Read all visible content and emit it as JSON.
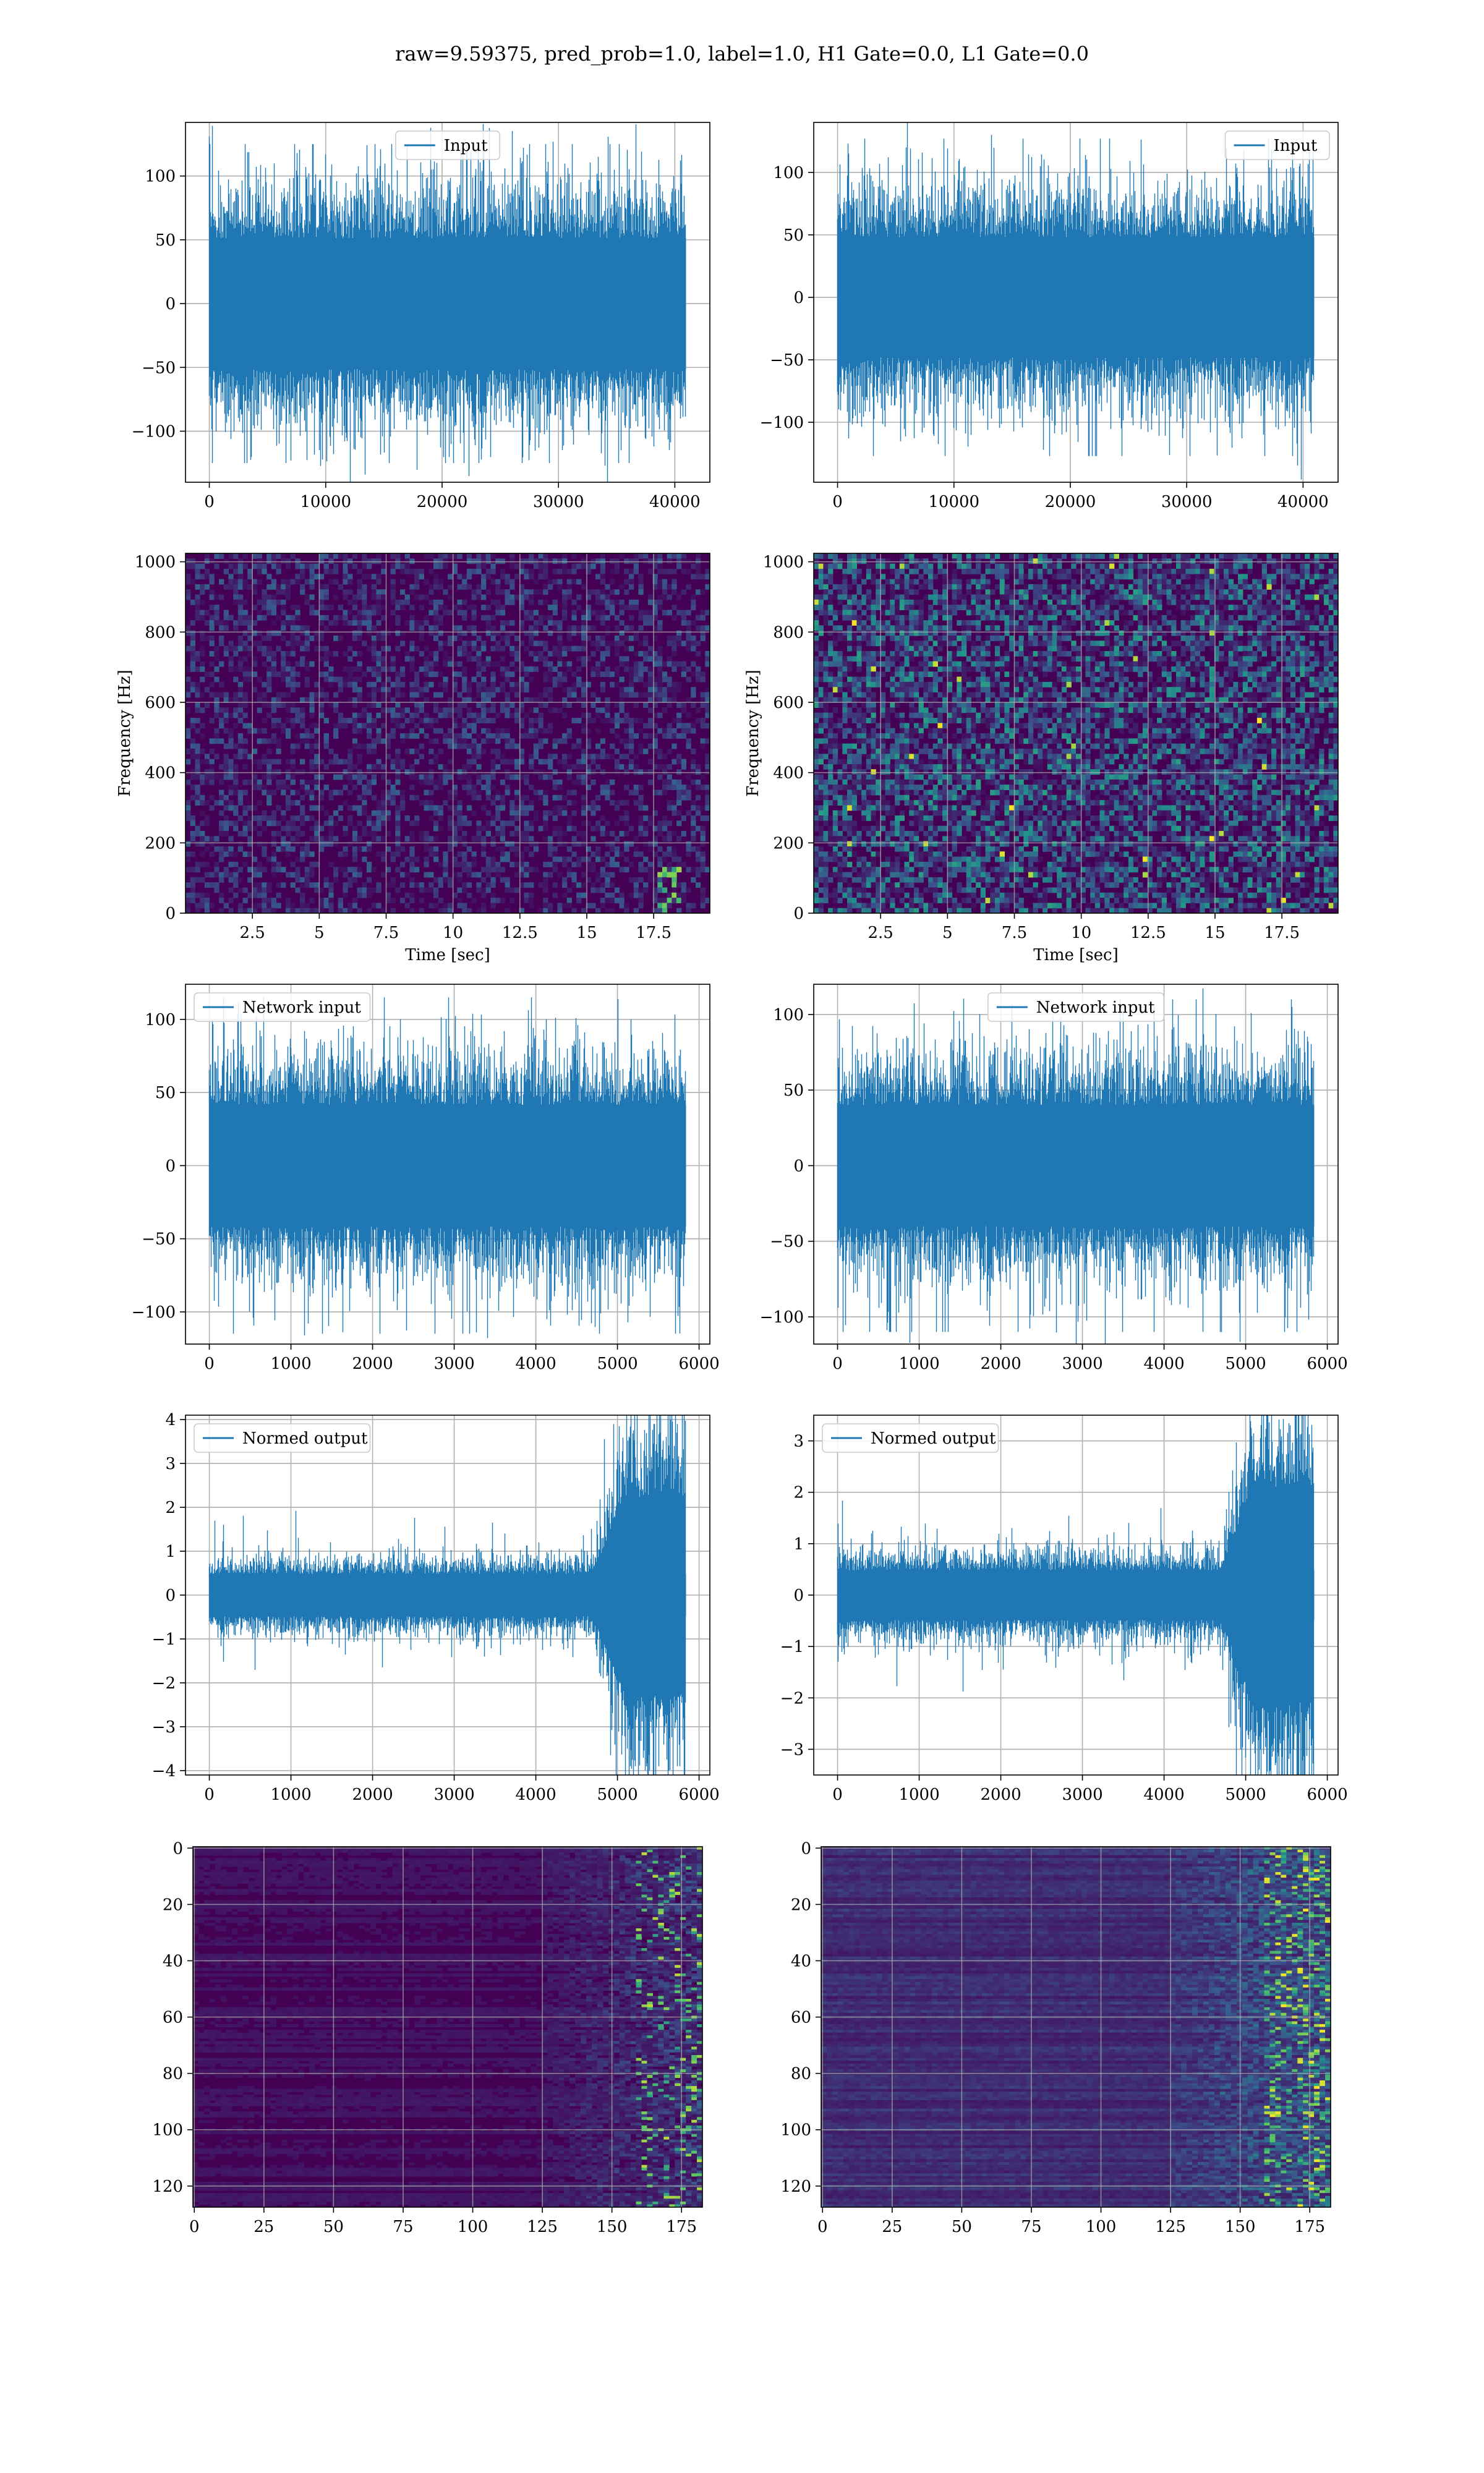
{
  "figure": {
    "title": "raw=9.59375, pred_prob=1.0, label=1.0, H1 Gate=0.0, L1 Gate=0.0"
  },
  "colors": {
    "line": "#1f77b4",
    "grid": "#b0b0b0",
    "viridis_low": "#440154",
    "viridis_mid": "#21918c",
    "viridis_high": "#fde725"
  },
  "chart_data": [
    {
      "id": "p1",
      "type": "line",
      "series": [
        {
          "name": "Input",
          "n": 40960,
          "amp": 32,
          "peak": 125
        }
      ],
      "xlim": [
        -2048,
        43008
      ],
      "ylim": [
        -140,
        142
      ],
      "xticks": [
        0,
        10000,
        20000,
        30000,
        40000
      ],
      "yticks": [
        -100,
        -50,
        0,
        50,
        100
      ],
      "legend": "upper center",
      "grid": true
    },
    {
      "id": "p2",
      "type": "line",
      "series": [
        {
          "name": "Input",
          "n": 40960,
          "amp": 30,
          "peak": 127
        }
      ],
      "xlim": [
        -2048,
        43008
      ],
      "ylim": [
        -148,
        140
      ],
      "xticks": [
        0,
        10000,
        20000,
        30000,
        40000
      ],
      "yticks": [
        -100,
        -50,
        0,
        50,
        100
      ],
      "legend": "upper right",
      "grid": true
    },
    {
      "id": "p3",
      "type": "heatmap",
      "xlabel": "Time [sec]",
      "ylabel": "Frequency [Hz]",
      "xlim": [
        0,
        19.6
      ],
      "ylim": [
        0,
        1024
      ],
      "xticks": [
        2.5,
        5.0,
        7.5,
        10.0,
        12.5,
        15.0,
        17.5
      ],
      "yticks": [
        0,
        200,
        400,
        600,
        800,
        1000
      ],
      "grid": true,
      "intensity": "low"
    },
    {
      "id": "p4",
      "type": "heatmap",
      "xlabel": "Time [sec]",
      "ylabel": "Frequency [Hz]",
      "xlim": [
        0,
        19.6
      ],
      "ylim": [
        0,
        1024
      ],
      "xticks": [
        2.5,
        5.0,
        7.5,
        10.0,
        12.5,
        15.0,
        17.5
      ],
      "yticks": [
        0,
        200,
        400,
        600,
        800,
        1000
      ],
      "grid": true,
      "intensity": "high"
    },
    {
      "id": "p5",
      "type": "line",
      "series": [
        {
          "name": "Network input",
          "n": 5840,
          "amp": 26,
          "peak": 115
        }
      ],
      "xlim": [
        -292,
        6132
      ],
      "ylim": [
        -122,
        124
      ],
      "xticks": [
        0,
        1000,
        2000,
        3000,
        4000,
        5000,
        6000
      ],
      "yticks": [
        -100,
        -50,
        0,
        50,
        100
      ],
      "legend": "upper left",
      "grid": true
    },
    {
      "id": "p6",
      "type": "line",
      "series": [
        {
          "name": "Network input",
          "n": 5840,
          "amp": 25,
          "peak": 110
        }
      ],
      "xlim": [
        -292,
        6132
      ],
      "ylim": [
        -118,
        120
      ],
      "xticks": [
        0,
        1000,
        2000,
        3000,
        4000,
        5000,
        6000
      ],
      "yticks": [
        -100,
        -50,
        0,
        50,
        100
      ],
      "legend": "upper center",
      "grid": true
    },
    {
      "id": "p7",
      "type": "line",
      "series": [
        {
          "name": "Normed output",
          "n": 5840,
          "amp": 0.3,
          "peak": 3.9,
          "burst_start": 4700,
          "burst_amp": 1.1
        }
      ],
      "xlim": [
        -292,
        6132
      ],
      "ylim": [
        -4.1,
        4.1
      ],
      "xticks": [
        0,
        1000,
        2000,
        3000,
        4000,
        5000,
        6000
      ],
      "yticks": [
        -4,
        -3,
        -2,
        -1,
        0,
        1,
        2,
        3,
        4
      ],
      "legend": "upper left",
      "grid": true
    },
    {
      "id": "p8",
      "type": "line",
      "series": [
        {
          "name": "Normed output",
          "n": 5840,
          "amp": 0.3,
          "peak": 3.6,
          "burst_start": 4700,
          "burst_amp": 1.0
        }
      ],
      "xlim": [
        -292,
        6132
      ],
      "ylim": [
        -3.5,
        3.5
      ],
      "xticks": [
        0,
        1000,
        2000,
        3000,
        4000,
        5000,
        6000
      ],
      "yticks": [
        -3,
        -2,
        -1,
        0,
        1,
        2,
        3
      ],
      "legend": "upper left",
      "grid": true
    },
    {
      "id": "p9",
      "type": "heatmap",
      "xlim": [
        -0.5,
        182.5
      ],
      "ylim": [
        127.5,
        -0.5
      ],
      "xticks": [
        0,
        25,
        50,
        75,
        100,
        125,
        150,
        175
      ],
      "yticks": [
        0,
        20,
        40,
        60,
        80,
        100,
        120
      ],
      "grid": true,
      "intensity": "low"
    },
    {
      "id": "p10",
      "type": "heatmap",
      "xlim": [
        -0.5,
        182.5
      ],
      "ylim": [
        127.5,
        -0.5
      ],
      "xticks": [
        0,
        25,
        50,
        75,
        100,
        125,
        150,
        175
      ],
      "yticks": [
        0,
        20,
        40,
        60,
        80,
        100,
        120
      ],
      "grid": true,
      "intensity": "high"
    }
  ]
}
